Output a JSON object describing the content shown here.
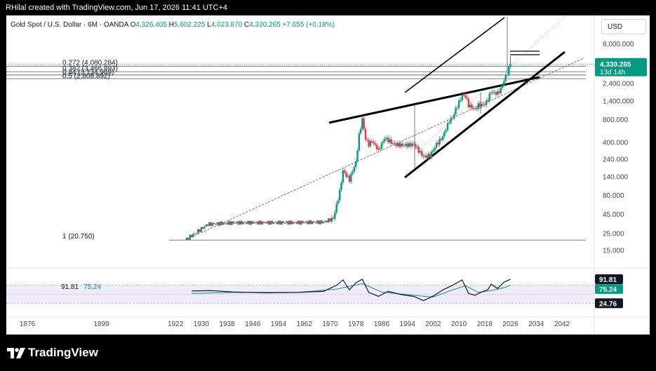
{
  "header": {
    "caption": "RHilal created with TradingView.com, Jun 17, 2026 11:41 UTC+4"
  },
  "legend": {
    "symbol": "Gold Spot / U.S. Dollar · 6M · OANDA",
    "open_label": "O",
    "open": "4,326.405",
    "high_label": "H",
    "high": "5,602.225",
    "low_label": "L",
    "low": "4,023.870",
    "close_label": "C",
    "close": "4,330.265",
    "change": "+7.655 (+0.18%)"
  },
  "currency_button": "USD",
  "price_badge": {
    "value": "4,330.265",
    "countdown": "13d 14h",
    "color": "#089981"
  },
  "rsi_badges": [
    {
      "value": "91.81",
      "bg": "#131722",
      "fg": "#ffffff"
    },
    {
      "value": "75.24",
      "bg": "#089981",
      "fg": "#ffffff"
    },
    {
      "value": "24.76",
      "bg": "#131722",
      "fg": "#ffffff"
    }
  ],
  "footer": {
    "brand": "TradingView"
  },
  "colors": {
    "up": "#089981",
    "down": "#f23645",
    "rsi_line": "#131722",
    "rsi_ma": "#089981",
    "rsi_fill": "#7e57c2"
  },
  "chart_data": {
    "type": "candlestick",
    "scale": "log",
    "ylim": [
      11,
      11500
    ],
    "y_ticks": [
      {
        "value": 8000,
        "label": "8,000.000"
      },
      {
        "value": 2400,
        "label": "2,400.000"
      },
      {
        "value": 1400,
        "label": "1,400.000"
      },
      {
        "value": 800,
        "label": "800.000"
      },
      {
        "value": 400,
        "label": "400.000"
      },
      {
        "value": 240,
        "label": "240.000"
      },
      {
        "value": 140,
        "label": "140.000"
      },
      {
        "value": 80,
        "label": "80.000"
      },
      {
        "value": 45,
        "label": "45.000"
      },
      {
        "value": 25,
        "label": "25.000"
      },
      {
        "value": 15,
        "label": "15.000"
      }
    ],
    "xlim": [
      1870,
      2047
    ],
    "x_ticks": [
      {
        "value": 1876,
        "label": "1876"
      },
      {
        "value": 1899,
        "label": "1899"
      },
      {
        "value": 1922,
        "label": "1922"
      },
      {
        "value": 1930,
        "label": "1930"
      },
      {
        "value": 1938,
        "label": "1938"
      },
      {
        "value": 1946,
        "label": "1946"
      },
      {
        "value": 1954,
        "label": "1954"
      },
      {
        "value": 1962,
        "label": "1962"
      },
      {
        "value": 1970,
        "label": "1970"
      },
      {
        "value": 1978,
        "label": "1978"
      },
      {
        "value": 1986,
        "label": "1986"
      },
      {
        "value": 1994,
        "label": "1994"
      },
      {
        "value": 2002,
        "label": "2002"
      },
      {
        "value": 2010,
        "label": "2010"
      },
      {
        "value": 2018,
        "label": "2018"
      },
      {
        "value": 2026,
        "label": "2026"
      },
      {
        "value": 2034,
        "label": "2034"
      },
      {
        "value": 2042,
        "label": "2042"
      }
    ],
    "fib_levels": [
      {
        "label": "0.272 (4,080.284)",
        "value": 4080.284
      },
      {
        "label": "0.382 (3,466.893)",
        "value": 3466.893
      },
      {
        "label": "0.44 (3,134.969)",
        "value": 3134.969
      },
      {
        "label": "0.5 (2,808.892)",
        "value": 2808.892
      },
      {
        "label": "1 (20.750)",
        "value": 20.75
      }
    ],
    "price_path": [
      [
        1925,
        20.75
      ],
      [
        1932,
        33.5
      ],
      [
        1940,
        35.1
      ],
      [
        1950,
        35.2
      ],
      [
        1960,
        35.3
      ],
      [
        1968,
        35.8
      ],
      [
        1971,
        40
      ],
      [
        1973,
        90
      ],
      [
        1974,
        170
      ],
      [
        1976,
        130
      ],
      [
        1978,
        220
      ],
      [
        1979,
        500
      ],
      [
        1980,
        820
      ],
      [
        1981,
        450
      ],
      [
        1982,
        380
      ],
      [
        1983,
        420
      ],
      [
        1985,
        320
      ],
      [
        1987,
        460
      ],
      [
        1990,
        380
      ],
      [
        1993,
        370
      ],
      [
        1996,
        380
      ],
      [
        1999,
        260
      ],
      [
        2001,
        270
      ],
      [
        2003,
        380
      ],
      [
        2005,
        480
      ],
      [
        2007,
        780
      ],
      [
        2008,
        850
      ],
      [
        2009,
        1100
      ],
      [
        2011,
        1700
      ],
      [
        2012,
        1650
      ],
      [
        2013,
        1250
      ],
      [
        2015,
        1100
      ],
      [
        2016,
        1250
      ],
      [
        2018,
        1280
      ],
      [
        2019,
        1500
      ],
      [
        2020,
        1900
      ],
      [
        2021,
        1800
      ],
      [
        2022,
        1800
      ],
      [
        2023,
        2050
      ],
      [
        2024,
        2650
      ],
      [
        2025,
        3350
      ],
      [
        2026,
        4330.265
      ]
    ],
    "rsi": {
      "values": [
        [
          1927,
          59
        ],
        [
          1933,
          60
        ],
        [
          1940,
          56
        ],
        [
          1950,
          54
        ],
        [
          1960,
          55
        ],
        [
          1968,
          58
        ],
        [
          1972,
          75
        ],
        [
          1974,
          90
        ],
        [
          1976,
          62
        ],
        [
          1978,
          82
        ],
        [
          1980,
          92
        ],
        [
          1982,
          55
        ],
        [
          1985,
          44
        ],
        [
          1988,
          58
        ],
        [
          1992,
          49
        ],
        [
          1996,
          44
        ],
        [
          1999,
          32
        ],
        [
          2002,
          45
        ],
        [
          2005,
          62
        ],
        [
          2008,
          75
        ],
        [
          2011,
          90
        ],
        [
          2013,
          52
        ],
        [
          2015,
          47
        ],
        [
          2017,
          56
        ],
        [
          2019,
          63
        ],
        [
          2020,
          78
        ],
        [
          2022,
          66
        ],
        [
          2024,
          84
        ],
        [
          2026,
          91.81
        ]
      ],
      "ma": [
        [
          1927,
          52
        ],
        [
          1940,
          55
        ],
        [
          1960,
          55
        ],
        [
          1972,
          64
        ],
        [
          1980,
          80
        ],
        [
          1986,
          56
        ],
        [
          1996,
          47
        ],
        [
          2002,
          42
        ],
        [
          2008,
          62
        ],
        [
          2012,
          74
        ],
        [
          2016,
          55
        ],
        [
          2020,
          60
        ],
        [
          2024,
          68
        ],
        [
          2026,
          75.24
        ]
      ],
      "upper": 75.24,
      "lower": 24.76
    }
  }
}
